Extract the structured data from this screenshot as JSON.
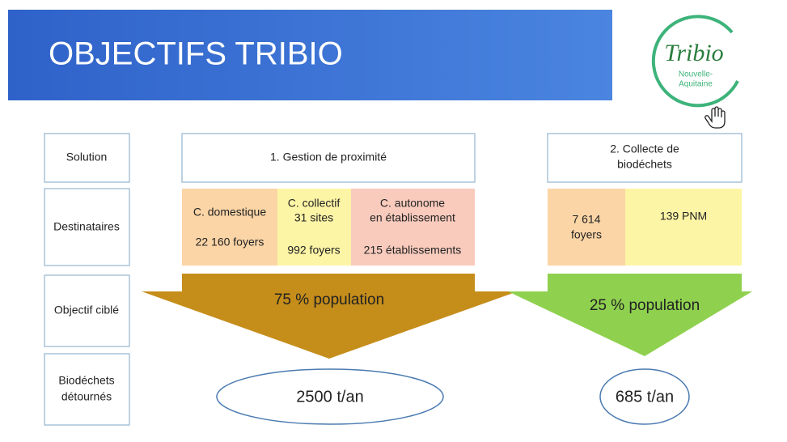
{
  "header": {
    "title": "OBJECTIFS TRIBIO"
  },
  "logo": {
    "name": "Tribio",
    "region": [
      "Nouvelle-",
      "Aquitaine"
    ]
  },
  "row_labels": [
    "Solution",
    "Destinataires",
    "Objectif ciblé",
    [
      "Biodéchets",
      "détournés"
    ]
  ],
  "solutions": [
    {
      "title": "1. Gestion de proximité",
      "recipients": [
        {
          "name": "C. domestique",
          "count": "22 160 foyers"
        },
        {
          "name": [
            "C. collectif",
            "31 sites"
          ],
          "count": "992 foyers"
        },
        {
          "name": [
            "C. autonome",
            "en établissement"
          ],
          "count": "215 établissements"
        }
      ],
      "objective": "75 % population",
      "diverted": "2500 t/an"
    },
    {
      "title": [
        "2. Collecte de",
        "biodéchets"
      ],
      "recipients": [
        {
          "name": [
            "7 614",
            "foyers"
          ]
        },
        {
          "name": "139 PNM"
        }
      ],
      "objective": "25 % population",
      "diverted": "685 t/an"
    }
  ]
}
